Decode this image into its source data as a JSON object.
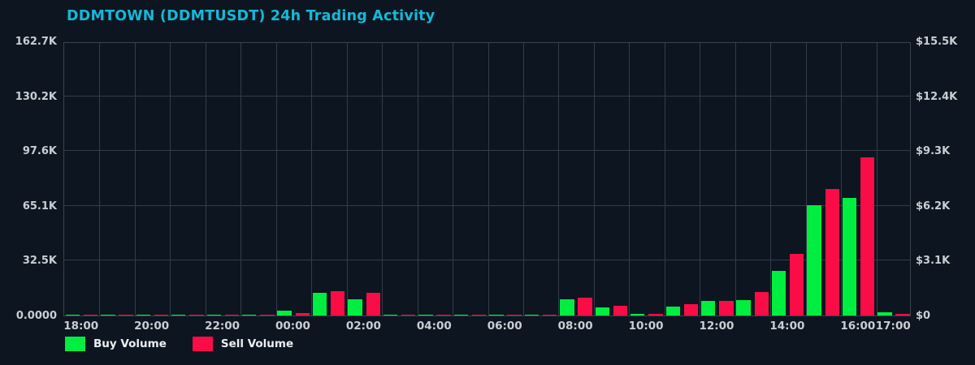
{
  "title": "DDMTOWN (DDMTUSDT) 24h Trading Activity",
  "colors": {
    "background": "#0d1620",
    "grid": "#323d49",
    "axis_border": "#39434e",
    "title_text": "#16b8d8",
    "tick_text": "#c9ced3",
    "legend_text": "#eceff2",
    "buy": "#00ee3f",
    "sell": "#fa0d46"
  },
  "legend": {
    "buy_label": "Buy Volume",
    "sell_label": "Sell Volume"
  },
  "chart_data": {
    "type": "bar",
    "title": "DDMTOWN (DDMTUSDT) 24h Trading Activity",
    "categories": [
      "18:00",
      "19:00",
      "20:00",
      "21:00",
      "22:00",
      "23:00",
      "00:00",
      "01:00",
      "02:00",
      "03:00",
      "04:00",
      "05:00",
      "06:00",
      "07:00",
      "08:00",
      "09:00",
      "10:00",
      "11:00",
      "12:00",
      "13:00",
      "14:00",
      "15:00",
      "16:00",
      "17:00"
    ],
    "series": [
      {
        "name": "Buy Volume",
        "color": "#00ee3f",
        "values": [
          400,
          400,
          450,
          350,
          500,
          400,
          2900,
          13500,
          9600,
          400,
          350,
          350,
          500,
          700,
          9600,
          4800,
          1000,
          5300,
          8600,
          9100,
          26300,
          65400,
          69700,
          2100
        ]
      },
      {
        "name": "Sell Volume",
        "color": "#fa0d46",
        "values": [
          400,
          350,
          350,
          400,
          400,
          450,
          1400,
          14400,
          13400,
          350,
          350,
          400,
          450,
          700,
          10700,
          5900,
          1000,
          6800,
          8600,
          13900,
          36800,
          75000,
          93800,
          1200
        ]
      }
    ],
    "y_left": {
      "ticks": [
        "0.0000",
        "32.5K",
        "65.1K",
        "97.6K",
        "130.2K",
        "162.7K"
      ],
      "min": 0,
      "max": 162700
    },
    "y_right": {
      "ticks": [
        "$0",
        "$3.1K",
        "$6.2K",
        "$9.3K",
        "$12.4K",
        "$15.5K"
      ],
      "min": 0,
      "max": 15500
    },
    "x_ticks": [
      [
        0,
        "18:00"
      ],
      [
        2,
        "20:00"
      ],
      [
        4,
        "22:00"
      ],
      [
        6,
        "00:00"
      ],
      [
        8,
        "02:00"
      ],
      [
        10,
        "04:00"
      ],
      [
        12,
        "06:00"
      ],
      [
        14,
        "08:00"
      ],
      [
        16,
        "10:00"
      ],
      [
        18,
        "12:00"
      ],
      [
        20,
        "14:00"
      ],
      [
        22,
        "16:00"
      ],
      [
        23,
        "17:00"
      ]
    ],
    "grid": true,
    "legend_position": "bottom-left"
  }
}
